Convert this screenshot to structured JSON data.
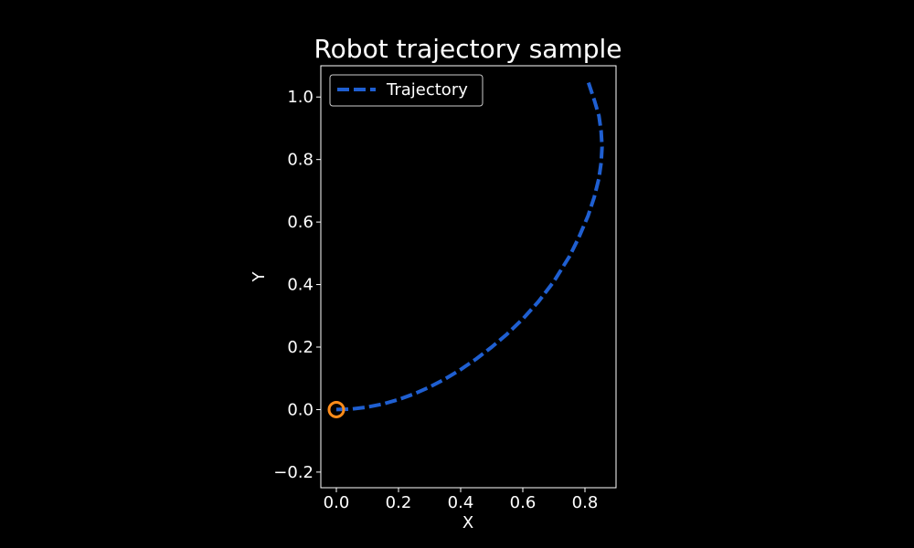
{
  "chart_data": {
    "type": "line",
    "title": "Robot trajectory sample",
    "xlabel": "X",
    "ylabel": "Y",
    "xlim": [
      -0.05,
      0.9
    ],
    "ylim": [
      -0.25,
      1.1
    ],
    "xticks": [
      0.0,
      0.2,
      0.4,
      0.6,
      0.8
    ],
    "xtick_labels": [
      "0.0",
      "0.2",
      "0.4",
      "0.6",
      "0.8"
    ],
    "yticks": [
      -0.2,
      0.0,
      0.2,
      0.4,
      0.6,
      0.8,
      1.0
    ],
    "ytick_labels": [
      "−0.2",
      "0.0",
      "0.2",
      "0.4",
      "0.6",
      "0.8",
      "1.0"
    ],
    "grid": false,
    "legend": {
      "placement": "top-left",
      "entries": [
        "Trajectory"
      ]
    },
    "series": [
      {
        "name": "Trajectory",
        "style": "dashed",
        "color": "#1f5fd1",
        "x": [
          0.0,
          0.05,
          0.1,
          0.15,
          0.2,
          0.25,
          0.3,
          0.35,
          0.4,
          0.45,
          0.5,
          0.55,
          0.6,
          0.65,
          0.7,
          0.75,
          0.78,
          0.81,
          0.83,
          0.845,
          0.852,
          0.855,
          0.852,
          0.845,
          0.83,
          0.81
        ],
        "y": [
          0.0,
          0.002,
          0.008,
          0.018,
          0.032,
          0.05,
          0.072,
          0.098,
          0.128,
          0.162,
          0.2,
          0.242,
          0.29,
          0.345,
          0.41,
          0.49,
          0.55,
          0.62,
          0.68,
          0.74,
          0.79,
          0.84,
          0.89,
          0.94,
          0.99,
          1.05
        ]
      }
    ],
    "markers": [
      {
        "label": "start",
        "x": 0.0,
        "y": 0.0,
        "shape": "open-circle",
        "color": "#ff8c1a"
      }
    ]
  }
}
